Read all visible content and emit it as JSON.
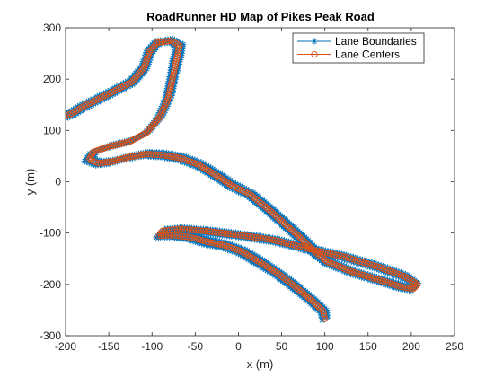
{
  "chart_data": {
    "type": "line",
    "title": "RoadRunner HD Map of Pikes Peak Road",
    "xlabel": "x (m)",
    "ylabel": "y (m)",
    "xlim": [
      -200,
      250
    ],
    "ylim": [
      -300,
      300
    ],
    "xticks": [
      -200,
      -150,
      -100,
      -50,
      0,
      50,
      100,
      150,
      200,
      250
    ],
    "yticks": [
      -300,
      -200,
      -100,
      0,
      100,
      200,
      300
    ],
    "grid": false,
    "legend_location": "top-right",
    "series": [
      {
        "name": "Lane Boundaries",
        "color": "#0072BD",
        "marker": "asterisk",
        "paths": [
          [
            [
              97,
              -270
            ],
            [
              95,
              -255
            ],
            [
              80,
              -232
            ],
            [
              60,
              -205
            ],
            [
              40,
              -180
            ],
            [
              20,
              -160
            ],
            [
              0,
              -140
            ],
            [
              -20,
              -128
            ],
            [
              -40,
              -122
            ],
            [
              -60,
              -112
            ],
            [
              -80,
              -108
            ],
            [
              -95,
              -109
            ],
            [
              -90,
              -99
            ],
            [
              -70,
              -96
            ],
            [
              -40,
              -100
            ],
            [
              0,
              -108
            ],
            [
              40,
              -118
            ],
            [
              80,
              -135
            ],
            [
              120,
              -150
            ],
            [
              160,
              -170
            ],
            [
              190,
              -188
            ],
            [
              206,
              -202
            ],
            [
              200,
              -212
            ],
            [
              185,
              -208
            ],
            [
              160,
              -195
            ],
            [
              130,
              -180
            ],
            [
              100,
              -160
            ],
            [
              85,
              -140
            ],
            [
              70,
              -115
            ],
            [
              50,
              -85
            ],
            [
              30,
              -55
            ],
            [
              10,
              -28
            ],
            [
              -10,
              -12
            ],
            [
              -30,
              10
            ],
            [
              -50,
              30
            ],
            [
              -70,
              42
            ],
            [
              -90,
              48
            ],
            [
              -110,
              50
            ],
            [
              -130,
              44
            ],
            [
              -150,
              35
            ],
            [
              -165,
              32
            ],
            [
              -178,
              40
            ],
            [
              -172,
              55
            ],
            [
              -155,
              65
            ],
            [
              -130,
              75
            ],
            [
              -110,
              92
            ],
            [
              -95,
              122
            ],
            [
              -85,
              160
            ],
            [
              -80,
              200
            ],
            [
              -76,
              240
            ],
            [
              -72,
              262
            ],
            [
              -80,
              272
            ],
            [
              -92,
              268
            ],
            [
              -100,
              250
            ],
            [
              -106,
              220
            ],
            [
              -120,
              192
            ],
            [
              -145,
              170
            ],
            [
              -175,
              145
            ],
            [
              -190,
              130
            ],
            [
              -202,
              122
            ]
          ],
          [
            [
              103,
              -265
            ],
            [
              102,
              -250
            ],
            [
              88,
              -228
            ],
            [
              68,
              -200
            ],
            [
              48,
              -175
            ],
            [
              28,
              -152
            ],
            [
              8,
              -132
            ],
            [
              -12,
              -120
            ],
            [
              -32,
              -112
            ],
            [
              -52,
              -104
            ],
            [
              -72,
              -100
            ],
            [
              -88,
              -102
            ],
            [
              -85,
              -92
            ],
            [
              -65,
              -89
            ],
            [
              -35,
              -93
            ],
            [
              5,
              -101
            ],
            [
              45,
              -111
            ],
            [
              85,
              -128
            ],
            [
              125,
              -143
            ],
            [
              165,
              -163
            ],
            [
              196,
              -182
            ],
            [
              208,
              -198
            ],
            [
              204,
              -206
            ],
            [
              190,
              -200
            ],
            [
              165,
              -188
            ],
            [
              135,
              -173
            ],
            [
              107,
              -153
            ],
            [
              92,
              -133
            ],
            [
              77,
              -108
            ],
            [
              57,
              -78
            ],
            [
              37,
              -48
            ],
            [
              17,
              -21
            ],
            [
              -3,
              -4
            ],
            [
              -23,
              18
            ],
            [
              -43,
              38
            ],
            [
              -63,
              50
            ],
            [
              -83,
              56
            ],
            [
              -103,
              58
            ],
            [
              -123,
              52
            ],
            [
              -143,
              43
            ],
            [
              -158,
              40
            ],
            [
              -168,
              45
            ],
            [
              -164,
              60
            ],
            [
              -147,
              72
            ],
            [
              -122,
              82
            ],
            [
              -102,
              100
            ],
            [
              -87,
              130
            ],
            [
              -77,
              168
            ],
            [
              -72,
              208
            ],
            [
              -66,
              246
            ],
            [
              -64,
              268
            ],
            [
              -76,
              278
            ],
            [
              -96,
              274
            ],
            [
              -106,
              256
            ],
            [
              -112,
              226
            ],
            [
              -126,
              198
            ],
            [
              -151,
              176
            ],
            [
              -181,
              151
            ],
            [
              -196,
              136
            ],
            [
              -206,
              128
            ]
          ]
        ]
      },
      {
        "name": "Lane Centers",
        "color": "#D95319",
        "marker": "circle",
        "paths": [
          [
            [
              100,
              -267
            ],
            [
              98,
              -252
            ],
            [
              84,
              -230
            ],
            [
              64,
              -202
            ],
            [
              44,
              -177
            ],
            [
              24,
              -156
            ],
            [
              4,
              -136
            ],
            [
              -16,
              -124
            ],
            [
              -36,
              -117
            ],
            [
              -56,
              -108
            ],
            [
              -76,
              -104
            ],
            [
              -92,
              -105
            ],
            [
              -88,
              -96
            ],
            [
              -68,
              -92
            ],
            [
              -38,
              -96
            ],
            [
              2,
              -104
            ],
            [
              42,
              -114
            ],
            [
              82,
              -131
            ],
            [
              122,
              -146
            ],
            [
              162,
              -166
            ],
            [
              193,
              -185
            ],
            [
              207,
              -200
            ],
            [
              202,
              -209
            ],
            [
              187,
              -204
            ],
            [
              162,
              -191
            ],
            [
              132,
              -176
            ],
            [
              103,
              -156
            ],
            [
              88,
              -136
            ],
            [
              73,
              -111
            ],
            [
              53,
              -81
            ],
            [
              33,
              -51
            ],
            [
              13,
              -24
            ],
            [
              -7,
              -8
            ],
            [
              -27,
              14
            ],
            [
              -47,
              34
            ],
            [
              -67,
              46
            ],
            [
              -87,
              52
            ],
            [
              -107,
              54
            ],
            [
              -127,
              48
            ],
            [
              -147,
              39
            ],
            [
              -162,
              36
            ],
            [
              -173,
              43
            ],
            [
              -168,
              58
            ],
            [
              -151,
              68
            ],
            [
              -126,
              78
            ],
            [
              -106,
              96
            ],
            [
              -91,
              126
            ],
            [
              -81,
              164
            ],
            [
              -76,
              204
            ],
            [
              -71,
              243
            ],
            [
              -68,
              265
            ],
            [
              -78,
              275
            ],
            [
              -94,
              271
            ],
            [
              -103,
              253
            ],
            [
              -109,
              223
            ],
            [
              -123,
              195
            ],
            [
              -148,
              173
            ],
            [
              -178,
              148
            ],
            [
              -193,
              133
            ],
            [
              -204,
              125
            ]
          ]
        ]
      }
    ]
  }
}
